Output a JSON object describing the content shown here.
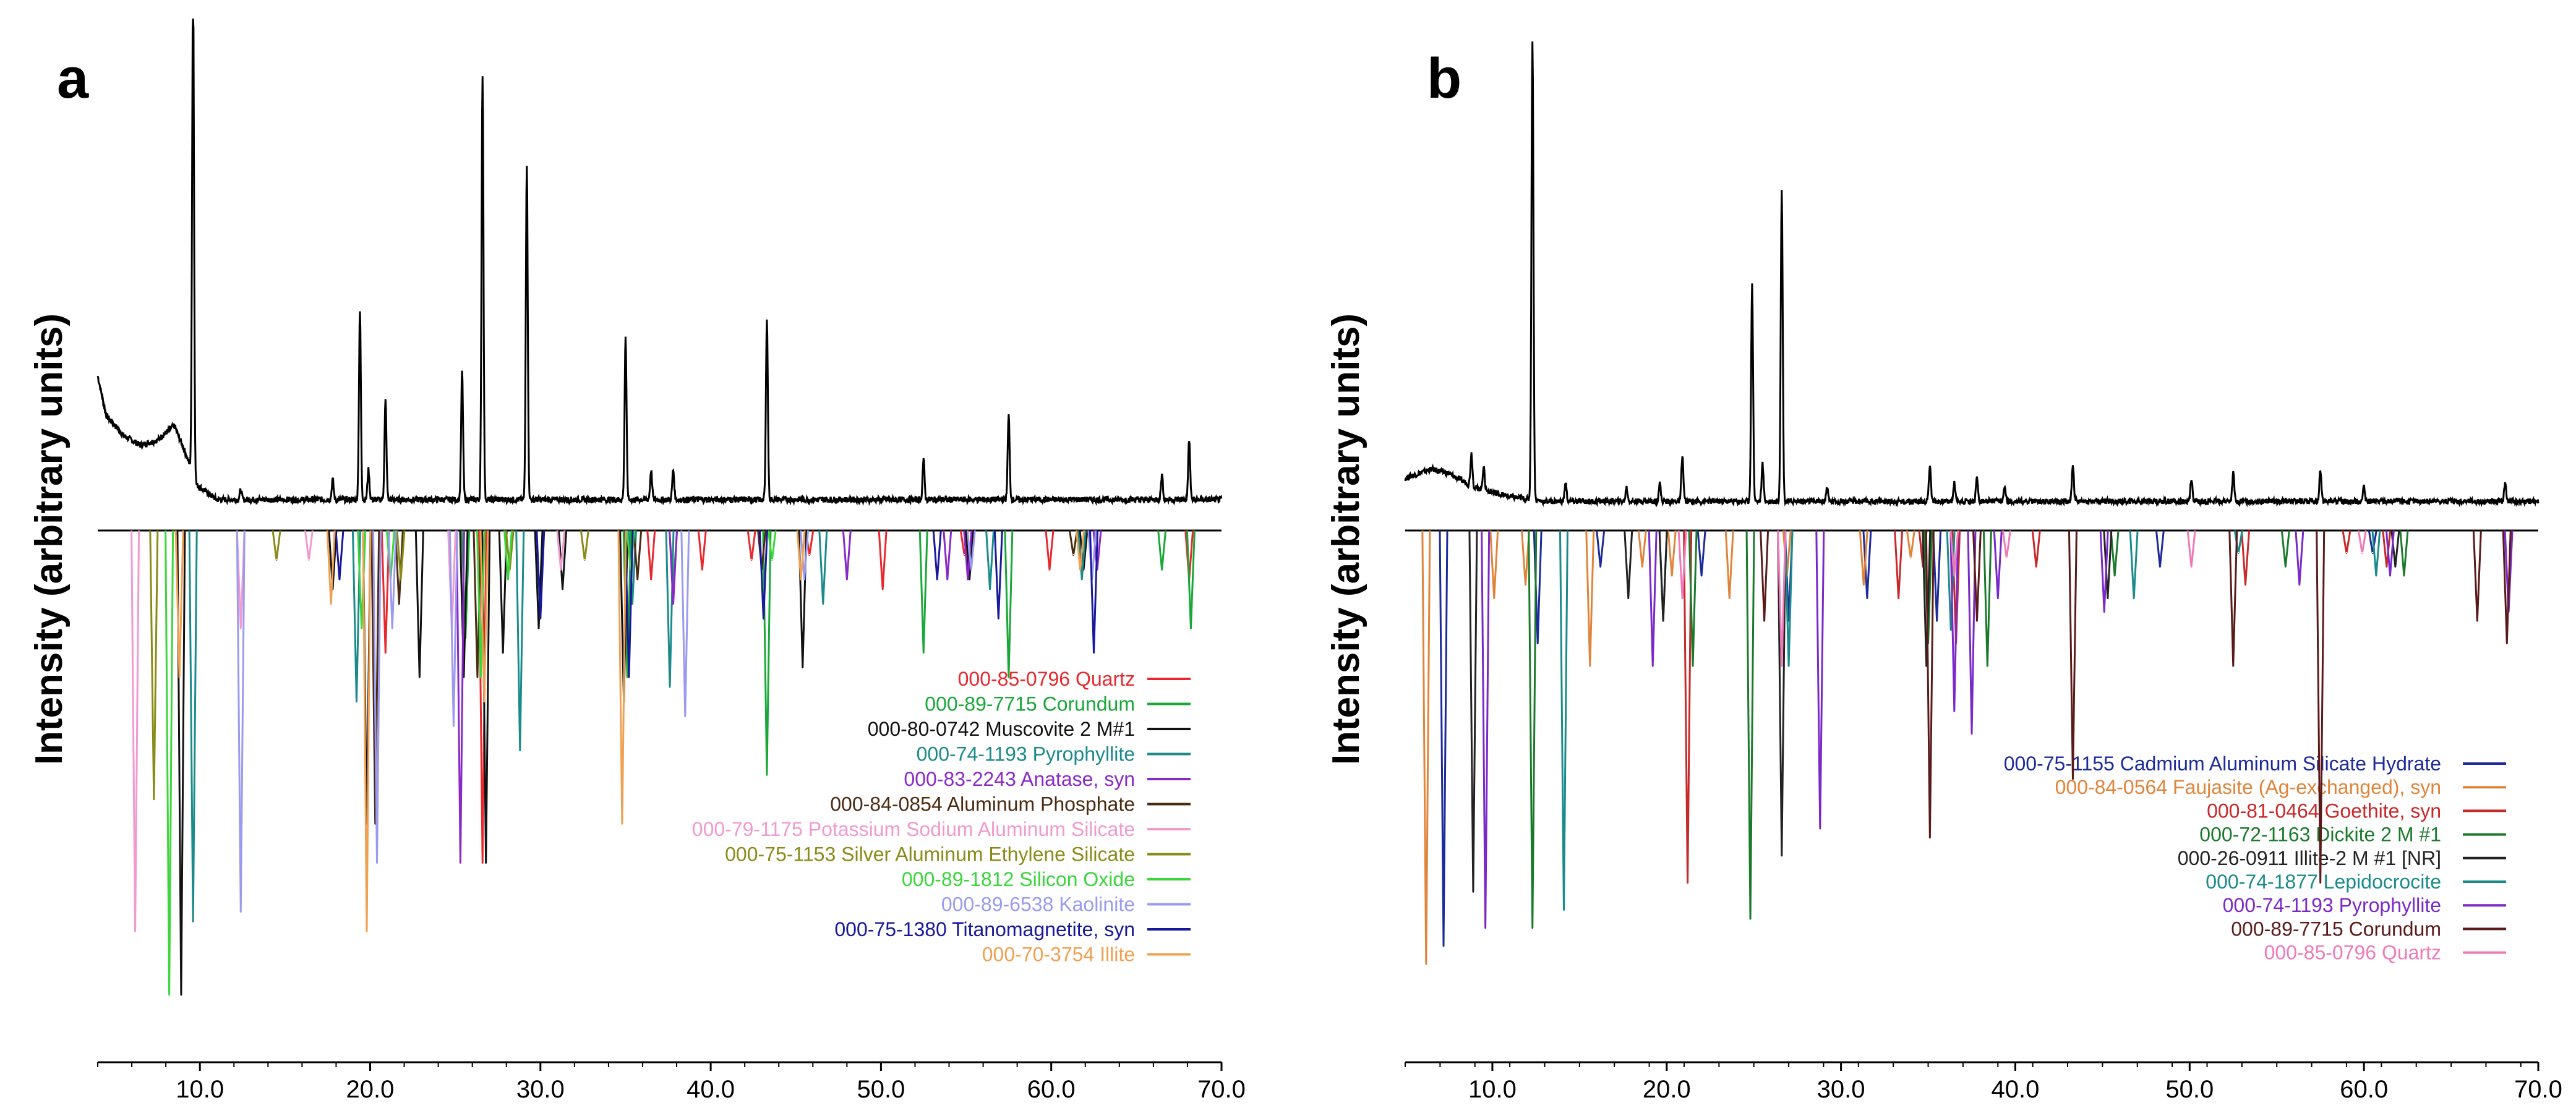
{
  "chart_data": [
    {
      "panel": "a",
      "type": "line",
      "title": "a",
      "ylabel": "Intensity (arbitrary units)",
      "xlabel": "",
      "xlim": [
        4,
        70
      ],
      "xticks": [
        "10.0",
        "20.0",
        "30.0",
        "40.0",
        "50.0",
        "60.0",
        "70.0"
      ],
      "observed_pattern": {
        "baseline": 0.05,
        "start_hump": [
          [
            4.0,
            0.3
          ],
          [
            4.5,
            0.22
          ],
          [
            5.5,
            0.18
          ],
          [
            6.5,
            0.16
          ],
          [
            7.5,
            0.17
          ],
          [
            8.5,
            0.2
          ],
          [
            9.2,
            0.14
          ],
          [
            9.8,
            0.08
          ],
          [
            11,
            0.05
          ]
        ],
        "peaks": [
          {
            "x": 9.6,
            "h": 1.0
          },
          {
            "x": 12.4,
            "h": 0.02
          },
          {
            "x": 17.8,
            "h": 0.04
          },
          {
            "x": 19.4,
            "h": 0.38
          },
          {
            "x": 19.9,
            "h": 0.06
          },
          {
            "x": 20.9,
            "h": 0.2
          },
          {
            "x": 25.4,
            "h": 0.26
          },
          {
            "x": 26.6,
            "h": 0.86
          },
          {
            "x": 29.2,
            "h": 0.68
          },
          {
            "x": 35.0,
            "h": 0.33
          },
          {
            "x": 36.5,
            "h": 0.06
          },
          {
            "x": 37.8,
            "h": 0.06
          },
          {
            "x": 43.3,
            "h": 0.37
          },
          {
            "x": 52.5,
            "h": 0.08
          },
          {
            "x": 57.5,
            "h": 0.17
          },
          {
            "x": 66.5,
            "h": 0.05
          },
          {
            "x": 68.1,
            "h": 0.12
          }
        ]
      },
      "reference_depth_max": 1.0,
      "reference_patterns": [
        {
          "label": "000-85-0796 Quartz",
          "color": "#e8282d",
          "sticks": [
            [
              20.9,
              0.25
            ],
            [
              26.6,
              0.68
            ],
            [
              36.5,
              0.1
            ],
            [
              39.5,
              0.08
            ],
            [
              42.4,
              0.06
            ],
            [
              45.8,
              0.05
            ],
            [
              50.1,
              0.12
            ],
            [
              54.9,
              0.05
            ],
            [
              59.9,
              0.08
            ],
            [
              68.1,
              0.1
            ]
          ]
        },
        {
          "label": "000-89-7715 Corundum",
          "color": "#18a838",
          "sticks": [
            [
              25.6,
              0.22
            ],
            [
              35.1,
              0.3
            ],
            [
              37.8,
              0.12
            ],
            [
              43.3,
              0.5
            ],
            [
              52.5,
              0.25
            ],
            [
              57.5,
              0.3
            ],
            [
              66.5,
              0.08
            ],
            [
              68.2,
              0.2
            ]
          ]
        },
        {
          "label": "000-80-0742 Muscovite 2  M#1",
          "color": "#111111",
          "sticks": [
            [
              8.9,
              0.95
            ],
            [
              17.8,
              0.12
            ],
            [
              19.8,
              0.6
            ],
            [
              22.9,
              0.3
            ],
            [
              25.5,
              0.3
            ],
            [
              26.8,
              0.68
            ],
            [
              27.8,
              0.25
            ],
            [
              29.9,
              0.2
            ],
            [
              31.3,
              0.12
            ],
            [
              34.9,
              0.35
            ],
            [
              45.4,
              0.28
            ],
            [
              55.2,
              0.1
            ],
            [
              61.9,
              0.08
            ]
          ]
        },
        {
          "label": "000-74-1193 Pyrophyllite",
          "color": "#1a8a8a",
          "sticks": [
            [
              9.6,
              0.8
            ],
            [
              19.2,
              0.35
            ],
            [
              28.8,
              0.45
            ],
            [
              35.4,
              0.15
            ],
            [
              37.6,
              0.32
            ],
            [
              46.6,
              0.15
            ],
            [
              56.4,
              0.12
            ],
            [
              61.8,
              0.1
            ]
          ]
        },
        {
          "label": "000-83-2243 Anatase, syn",
          "color": "#8a28c8",
          "sticks": [
            [
              25.3,
              0.68
            ],
            [
              37.8,
              0.15
            ],
            [
              48.0,
              0.1
            ],
            [
              53.9,
              0.1
            ],
            [
              55.1,
              0.1
            ],
            [
              62.7,
              0.08
            ]
          ]
        },
        {
          "label": "000-84-0854 Aluminum Phosphate",
          "color": "#4a2a10",
          "sticks": [
            [
              20.3,
              0.6
            ],
            [
              21.7,
              0.15
            ],
            [
              26.3,
              0.3
            ],
            [
              35.7,
              0.1
            ],
            [
              43.0,
              0.08
            ],
            [
              61.3,
              0.05
            ]
          ]
        },
        {
          "label": "000-79-1175 Potassium Sodium Aluminum Silicate",
          "color": "#f09ad0",
          "sticks": [
            [
              6.2,
              0.82
            ],
            [
              12.4,
              0.2
            ],
            [
              16.4,
              0.06
            ],
            [
              24.8,
              0.2
            ],
            [
              31.2,
              0.08
            ]
          ]
        },
        {
          "label": "000-75-1153 Silver Aluminum Ethylene Silicate",
          "color": "#8a8a18",
          "sticks": [
            [
              7.3,
              0.55
            ],
            [
              14.5,
              0.06
            ],
            [
              21.8,
              0.1
            ],
            [
              28.2,
              0.08
            ],
            [
              32.6,
              0.06
            ]
          ]
        },
        {
          "label": "000-89-1812 Silicon Oxide",
          "color": "#3ad63a",
          "sticks": [
            [
              8.2,
              0.95
            ],
            [
              19.5,
              0.2
            ],
            [
              21.2,
              0.1
            ],
            [
              26.5,
              0.3
            ],
            [
              28.1,
              0.1
            ],
            [
              35.3,
              0.08
            ],
            [
              43.6,
              0.06
            ]
          ]
        },
        {
          "label": "000-89-6538 Kaolinite",
          "color": "#9a9af0",
          "sticks": [
            [
              12.4,
              0.78
            ],
            [
              20.4,
              0.68
            ],
            [
              21.3,
              0.2
            ],
            [
              24.9,
              0.4
            ],
            [
              38.5,
              0.38
            ],
            [
              45.5,
              0.1
            ],
            [
              55.3,
              0.08
            ],
            [
              62.4,
              0.1
            ]
          ]
        },
        {
          "label": "000-75-1380 Titanomagnetite, syn",
          "color": "#18189a",
          "sticks": [
            [
              18.2,
              0.1
            ],
            [
              30.0,
              0.18
            ],
            [
              35.2,
              0.3
            ],
            [
              43.1,
              0.18
            ],
            [
              53.3,
              0.1
            ],
            [
              56.9,
              0.18
            ],
            [
              62.5,
              0.25
            ]
          ]
        },
        {
          "label": "000-70-3754 Illite",
          "color": "#f0a050",
          "sticks": [
            [
              8.8,
              0.3
            ],
            [
              17.7,
              0.15
            ],
            [
              19.8,
              0.82
            ],
            [
              26.7,
              0.35
            ],
            [
              34.8,
              0.6
            ],
            [
              45.3,
              0.1
            ],
            [
              61.7,
              0.08
            ]
          ]
        }
      ]
    },
    {
      "panel": "b",
      "type": "line",
      "title": "b",
      "ylabel": "Intensity (arbitrary units)",
      "xlabel": "",
      "xlim": [
        5,
        70
      ],
      "xticks": [
        "10.0",
        "20.0",
        "30.0",
        "40.0",
        "50.0",
        "60.0",
        "70.0"
      ],
      "observed_pattern": {
        "baseline": 0.05,
        "start_hump": [
          [
            5.0,
            0.1
          ],
          [
            6.5,
            0.12
          ],
          [
            7.5,
            0.11
          ],
          [
            9.0,
            0.08
          ],
          [
            11.0,
            0.06
          ],
          [
            13.0,
            0.05
          ]
        ],
        "peaks": [
          {
            "x": 8.8,
            "h": 0.07
          },
          {
            "x": 9.5,
            "h": 0.05
          },
          {
            "x": 12.3,
            "h": 1.0
          },
          {
            "x": 14.2,
            "h": 0.04
          },
          {
            "x": 17.7,
            "h": 0.03
          },
          {
            "x": 19.6,
            "h": 0.04
          },
          {
            "x": 20.9,
            "h": 0.1
          },
          {
            "x": 24.9,
            "h": 0.47
          },
          {
            "x": 25.5,
            "h": 0.08
          },
          {
            "x": 26.6,
            "h": 0.68
          },
          {
            "x": 29.2,
            "h": 0.03
          },
          {
            "x": 35.1,
            "h": 0.08
          },
          {
            "x": 36.5,
            "h": 0.04
          },
          {
            "x": 37.8,
            "h": 0.05
          },
          {
            "x": 39.4,
            "h": 0.03
          },
          {
            "x": 43.3,
            "h": 0.08
          },
          {
            "x": 50.1,
            "h": 0.05
          },
          {
            "x": 52.5,
            "h": 0.06
          },
          {
            "x": 57.5,
            "h": 0.07
          },
          {
            "x": 60.0,
            "h": 0.03
          },
          {
            "x": 68.1,
            "h": 0.04
          }
        ]
      },
      "reference_depth_max": 1.0,
      "reference_patterns": [
        {
          "label": "000-75-1155 Cadmium Aluminum Silicate Hydrate",
          "color": "#1c2a9a",
          "sticks": [
            [
              7.2,
              0.92
            ],
            [
              12.6,
              0.25
            ],
            [
              16.2,
              0.08
            ],
            [
              22.0,
              0.1
            ],
            [
              27.0,
              0.2
            ],
            [
              31.5,
              0.15
            ],
            [
              35.5,
              0.2
            ],
            [
              48.3,
              0.08
            ],
            [
              60.5,
              0.05
            ]
          ]
        },
        {
          "label": "000-84-0564 Faujasite (Ag-exchanged), syn",
          "color": "#e0843a",
          "sticks": [
            [
              6.2,
              0.96
            ],
            [
              10.1,
              0.15
            ],
            [
              11.9,
              0.12
            ],
            [
              15.6,
              0.3
            ],
            [
              18.6,
              0.08
            ],
            [
              20.3,
              0.1
            ],
            [
              23.6,
              0.15
            ],
            [
              26.9,
              0.1
            ],
            [
              31.3,
              0.12
            ],
            [
              34.0,
              0.06
            ]
          ]
        },
        {
          "label": "000-81-0464 Goethite, syn",
          "color": "#c82828",
          "sticks": [
            [
              21.2,
              0.78
            ],
            [
              33.3,
              0.15
            ],
            [
              34.7,
              0.08
            ],
            [
              36.6,
              0.25
            ],
            [
              41.2,
              0.08
            ],
            [
              53.2,
              0.12
            ],
            [
              59.0,
              0.05
            ],
            [
              61.3,
              0.08
            ]
          ]
        },
        {
          "label": "000-72-1163 Dickite 2  M #1",
          "color": "#1a7a2a",
          "sticks": [
            [
              12.3,
              0.88
            ],
            [
              19.8,
              0.2
            ],
            [
              21.5,
              0.3
            ],
            [
              24.8,
              0.86
            ],
            [
              35.0,
              0.25
            ],
            [
              38.4,
              0.3
            ],
            [
              45.7,
              0.1
            ],
            [
              55.5,
              0.08
            ],
            [
              62.3,
              0.1
            ]
          ]
        },
        {
          "label": "000-26-0911 Illite-2  M #1 [NR]",
          "color": "#222222",
          "sticks": [
            [
              8.9,
              0.8
            ],
            [
              17.8,
              0.15
            ],
            [
              19.8,
              0.2
            ],
            [
              26.6,
              0.72
            ],
            [
              34.9,
              0.3
            ],
            [
              45.3,
              0.15
            ],
            [
              61.8,
              0.08
            ]
          ]
        },
        {
          "label": "000-74-1877 Lepidocrocite",
          "color": "#1a8a8a",
          "sticks": [
            [
              14.1,
              0.84
            ],
            [
              27.0,
              0.3
            ],
            [
              36.3,
              0.22
            ],
            [
              46.8,
              0.15
            ],
            [
              52.8,
              0.05
            ],
            [
              60.7,
              0.1
            ]
          ]
        },
        {
          "label": "000-74-1193 Pyrophyllite",
          "color": "#7a28c8",
          "sticks": [
            [
              9.6,
              0.88
            ],
            [
              19.2,
              0.3
            ],
            [
              28.8,
              0.66
            ],
            [
              36.5,
              0.4
            ],
            [
              37.5,
              0.45
            ],
            [
              39.0,
              0.15
            ],
            [
              45.1,
              0.18
            ],
            [
              56.3,
              0.12
            ],
            [
              61.5,
              0.1
            ],
            [
              68.3,
              0.18
            ]
          ]
        },
        {
          "label": "000-89-7715 Corundum",
          "color": "#5a1a1a",
          "sticks": [
            [
              25.6,
              0.2
            ],
            [
              35.1,
              0.68
            ],
            [
              37.8,
              0.2
            ],
            [
              43.3,
              0.55
            ],
            [
              52.5,
              0.3
            ],
            [
              57.5,
              0.78
            ],
            [
              66.5,
              0.2
            ],
            [
              68.2,
              0.25
            ]
          ]
        },
        {
          "label": "000-85-0796 Quartz",
          "color": "#f07ab8",
          "sticks": [
            [
              20.9,
              0.15
            ],
            [
              26.6,
              0.3
            ],
            [
              36.5,
              0.1
            ],
            [
              39.5,
              0.06
            ],
            [
              50.1,
              0.08
            ],
            [
              59.9,
              0.05
            ]
          ]
        }
      ]
    }
  ]
}
